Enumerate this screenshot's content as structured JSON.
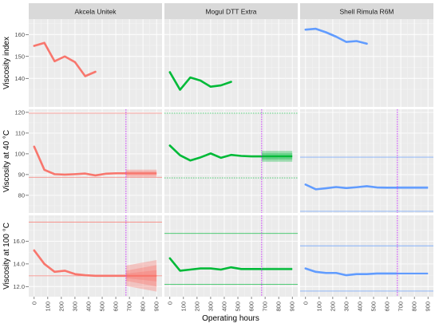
{
  "chart_data": {
    "type": "line",
    "xlabel": "Operating hours",
    "x_ticks": [
      0,
      100,
      200,
      300,
      400,
      500,
      600,
      700,
      800,
      900
    ],
    "xlim": [
      -40,
      940
    ],
    "facet_columns": [
      {
        "title": "Akcela Unitek",
        "color": "#f8766d"
      },
      {
        "title": "Mogul DTT Extra",
        "color": "#00ba38"
      },
      {
        "title": "Shell Rimula R6M",
        "color": "#619cff"
      }
    ],
    "forecast_marker_x": 675,
    "forecast_marker_color": "#cc33ff",
    "rows": [
      {
        "ylabel": "Viscosity index",
        "ylim": [
          127,
          167
        ],
        "y_ticks": [
          140,
          150,
          160
        ],
        "forecast_marker": false,
        "series": [
          {
            "x": [
              0,
              75,
              150,
              225,
              300,
              375,
              450
            ],
            "y": [
              154.8,
              156.2,
              147.8,
              150.0,
              147.4,
              141.0,
              143.0
            ]
          },
          {
            "x": [
              0,
              75,
              150,
              225,
              300,
              375,
              450
            ],
            "y": [
              142.8,
              134.8,
              140.4,
              139.0,
              136.2,
              136.8,
              138.4
            ]
          },
          {
            "x": [
              0,
              75,
              150,
              225,
              300,
              375,
              450
            ],
            "y": [
              162.2,
              162.6,
              161.0,
              159.0,
              156.6,
              157.0,
              155.8
            ]
          }
        ]
      },
      {
        "ylabel": "Viscosity at 40 °C",
        "ylim": [
          71.5,
          121.5
        ],
        "y_ticks": [
          80,
          90,
          100,
          110,
          120
        ],
        "forecast_marker": true,
        "series": [
          {
            "x": [
              0,
              75,
              150,
              225,
              300,
              375,
              450,
              525,
              600,
              675
            ],
            "y": [
              103.5,
              92.3,
              90.2,
              90.0,
              90.2,
              90.5,
              89.6,
              90.4,
              90.6,
              90.6
            ],
            "limits": [
              119.6,
              88.7
            ],
            "limit_style": "solid",
            "forecast": {
              "x": [
                675,
                900
              ],
              "center": 90.6,
              "bands": [
                [
                  1.8,
                  1.8
                ],
                [
                  1.0,
                  1.0
                ]
              ]
            }
          },
          {
            "x": [
              0,
              75,
              150,
              225,
              300,
              375,
              450,
              525,
              600,
              675
            ],
            "y": [
              104.0,
              99.3,
              96.8,
              98.3,
              100.2,
              98.1,
              99.5,
              99.0,
              98.8,
              98.8
            ],
            "limits": [
              119.6,
              88.4
            ],
            "limit_style": "dotted",
            "forecast": {
              "x": [
                675,
                900
              ],
              "center": 98.8,
              "bands": [
                [
                  2.6,
                  2.6
                ],
                [
                  1.5,
                  1.5
                ]
              ]
            }
          },
          {
            "x": [
              0,
              75,
              150,
              225,
              300,
              375,
              450,
              525,
              600,
              675
            ],
            "y": [
              85.2,
              82.9,
              83.4,
              84.0,
              83.5,
              83.9,
              84.4,
              83.8,
              83.7,
              83.7
            ],
            "limits": [
              98.4,
              72.3
            ],
            "limit_style": "solid",
            "forecast": {
              "x": [
                675,
                900
              ],
              "center": 83.7,
              "bands": [
                [
                  0.7,
                  0.7
                ],
                [
                  0.3,
                  0.3
                ]
              ]
            }
          }
        ]
      },
      {
        "ylabel": "Viscosity at 100 °C",
        "ylim": [
          11.1,
          18.3
        ],
        "y_ticks": [
          12.0,
          14.0,
          16.0
        ],
        "y_tick_labels": [
          "12.0",
          "14.0",
          "16.0"
        ],
        "forecast_marker": true,
        "series": [
          {
            "x": [
              0,
              75,
              150,
              225,
              300,
              375,
              450,
              525,
              600,
              675
            ],
            "y": [
              15.2,
              14.0,
              13.3,
              13.4,
              13.1,
              13.0,
              12.95,
              12.95,
              12.95,
              12.95
            ],
            "limits": [
              17.7,
              12.95
            ],
            "limit_style": "solid",
            "forecast": {
              "x": [
                675,
                900
              ],
              "center": 12.95,
              "bands": [
                [
                  0.9,
                  1.4
                ],
                [
                  0.45,
                  0.95
                ],
                [
                  0.2,
                  0.5
                ]
              ]
            }
          },
          {
            "x": [
              0,
              75,
              150,
              225,
              300,
              375,
              450,
              525,
              600,
              675
            ],
            "y": [
              14.5,
              13.4,
              13.5,
              13.6,
              13.6,
              13.5,
              13.7,
              13.55,
              13.55,
              13.55
            ],
            "limits": [
              16.7,
              12.2
            ],
            "limit_style": "solid",
            "forecast": {
              "x": [
                675,
                900
              ],
              "center": 13.55,
              "bands": [
                [
                  0.12,
                  0.12
                ]
              ]
            }
          },
          {
            "x": [
              0,
              75,
              150,
              225,
              300,
              375,
              450,
              525,
              600,
              675
            ],
            "y": [
              13.6,
              13.3,
              13.2,
              13.2,
              13.0,
              13.1,
              13.1,
              13.15,
              13.15,
              13.15
            ],
            "limits": [
              15.6,
              11.6
            ],
            "limit_style": "solid",
            "forecast": {
              "x": [
                675,
                900
              ],
              "center": 13.15,
              "bands": [
                [
                  0.07,
                  0.07
                ]
              ]
            }
          }
        ]
      }
    ]
  }
}
